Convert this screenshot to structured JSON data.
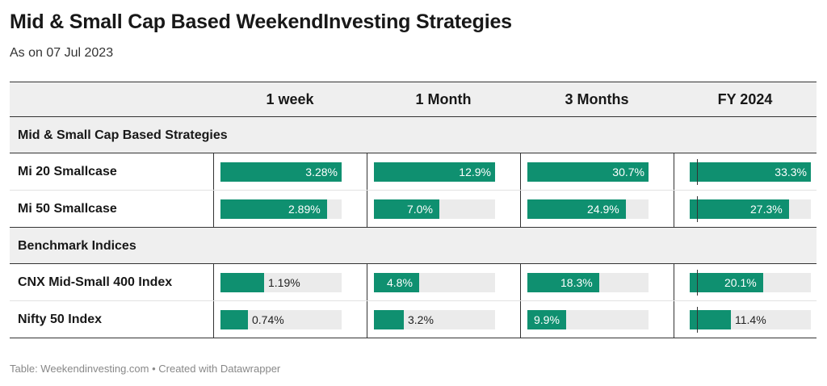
{
  "title": "Mid & Small Cap Based WeekendInvesting Strategies",
  "subtitle": "As on 07 Jul 2023",
  "source": "Table: Weekendinvesting.com • Created with Datawrapper",
  "colors": {
    "bar": "#0f9070",
    "bar_bg": "#ebebeb",
    "header_bg": "#efefef"
  },
  "chart_data": {
    "type": "table",
    "columns": [
      "1 week",
      "1 Month",
      "3 Months",
      "FY 2024"
    ],
    "groups": [
      {
        "name": "Mid & Small Cap Based Strategies",
        "rows": [
          {
            "label": "Mi 20 Smallcase",
            "values": [
              3.28,
              12.9,
              30.7,
              33.3
            ],
            "display": [
              "3.28%",
              "12.9%",
              "30.7%",
              "33.3%"
            ]
          },
          {
            "label": "Mi 50 Smallcase",
            "values": [
              2.89,
              7.0,
              24.9,
              27.3
            ],
            "display": [
              "2.89%",
              "7.0%",
              "24.9%",
              "27.3%"
            ]
          }
        ]
      },
      {
        "name": "Benchmark Indices",
        "rows": [
          {
            "label": "CNX Mid-Small 400 Index",
            "values": [
              1.19,
              4.8,
              18.3,
              20.1
            ],
            "display": [
              "1.19%",
              "4.8%",
              "18.3%",
              "20.1%"
            ]
          },
          {
            "label": "Nifty 50 Index",
            "values": [
              0.74,
              3.2,
              9.9,
              11.4
            ],
            "display": [
              "0.74%",
              "3.2%",
              "9.9%",
              "11.4%"
            ]
          }
        ]
      }
    ],
    "column_max": [
      3.28,
      12.9,
      30.7,
      33.3
    ]
  }
}
